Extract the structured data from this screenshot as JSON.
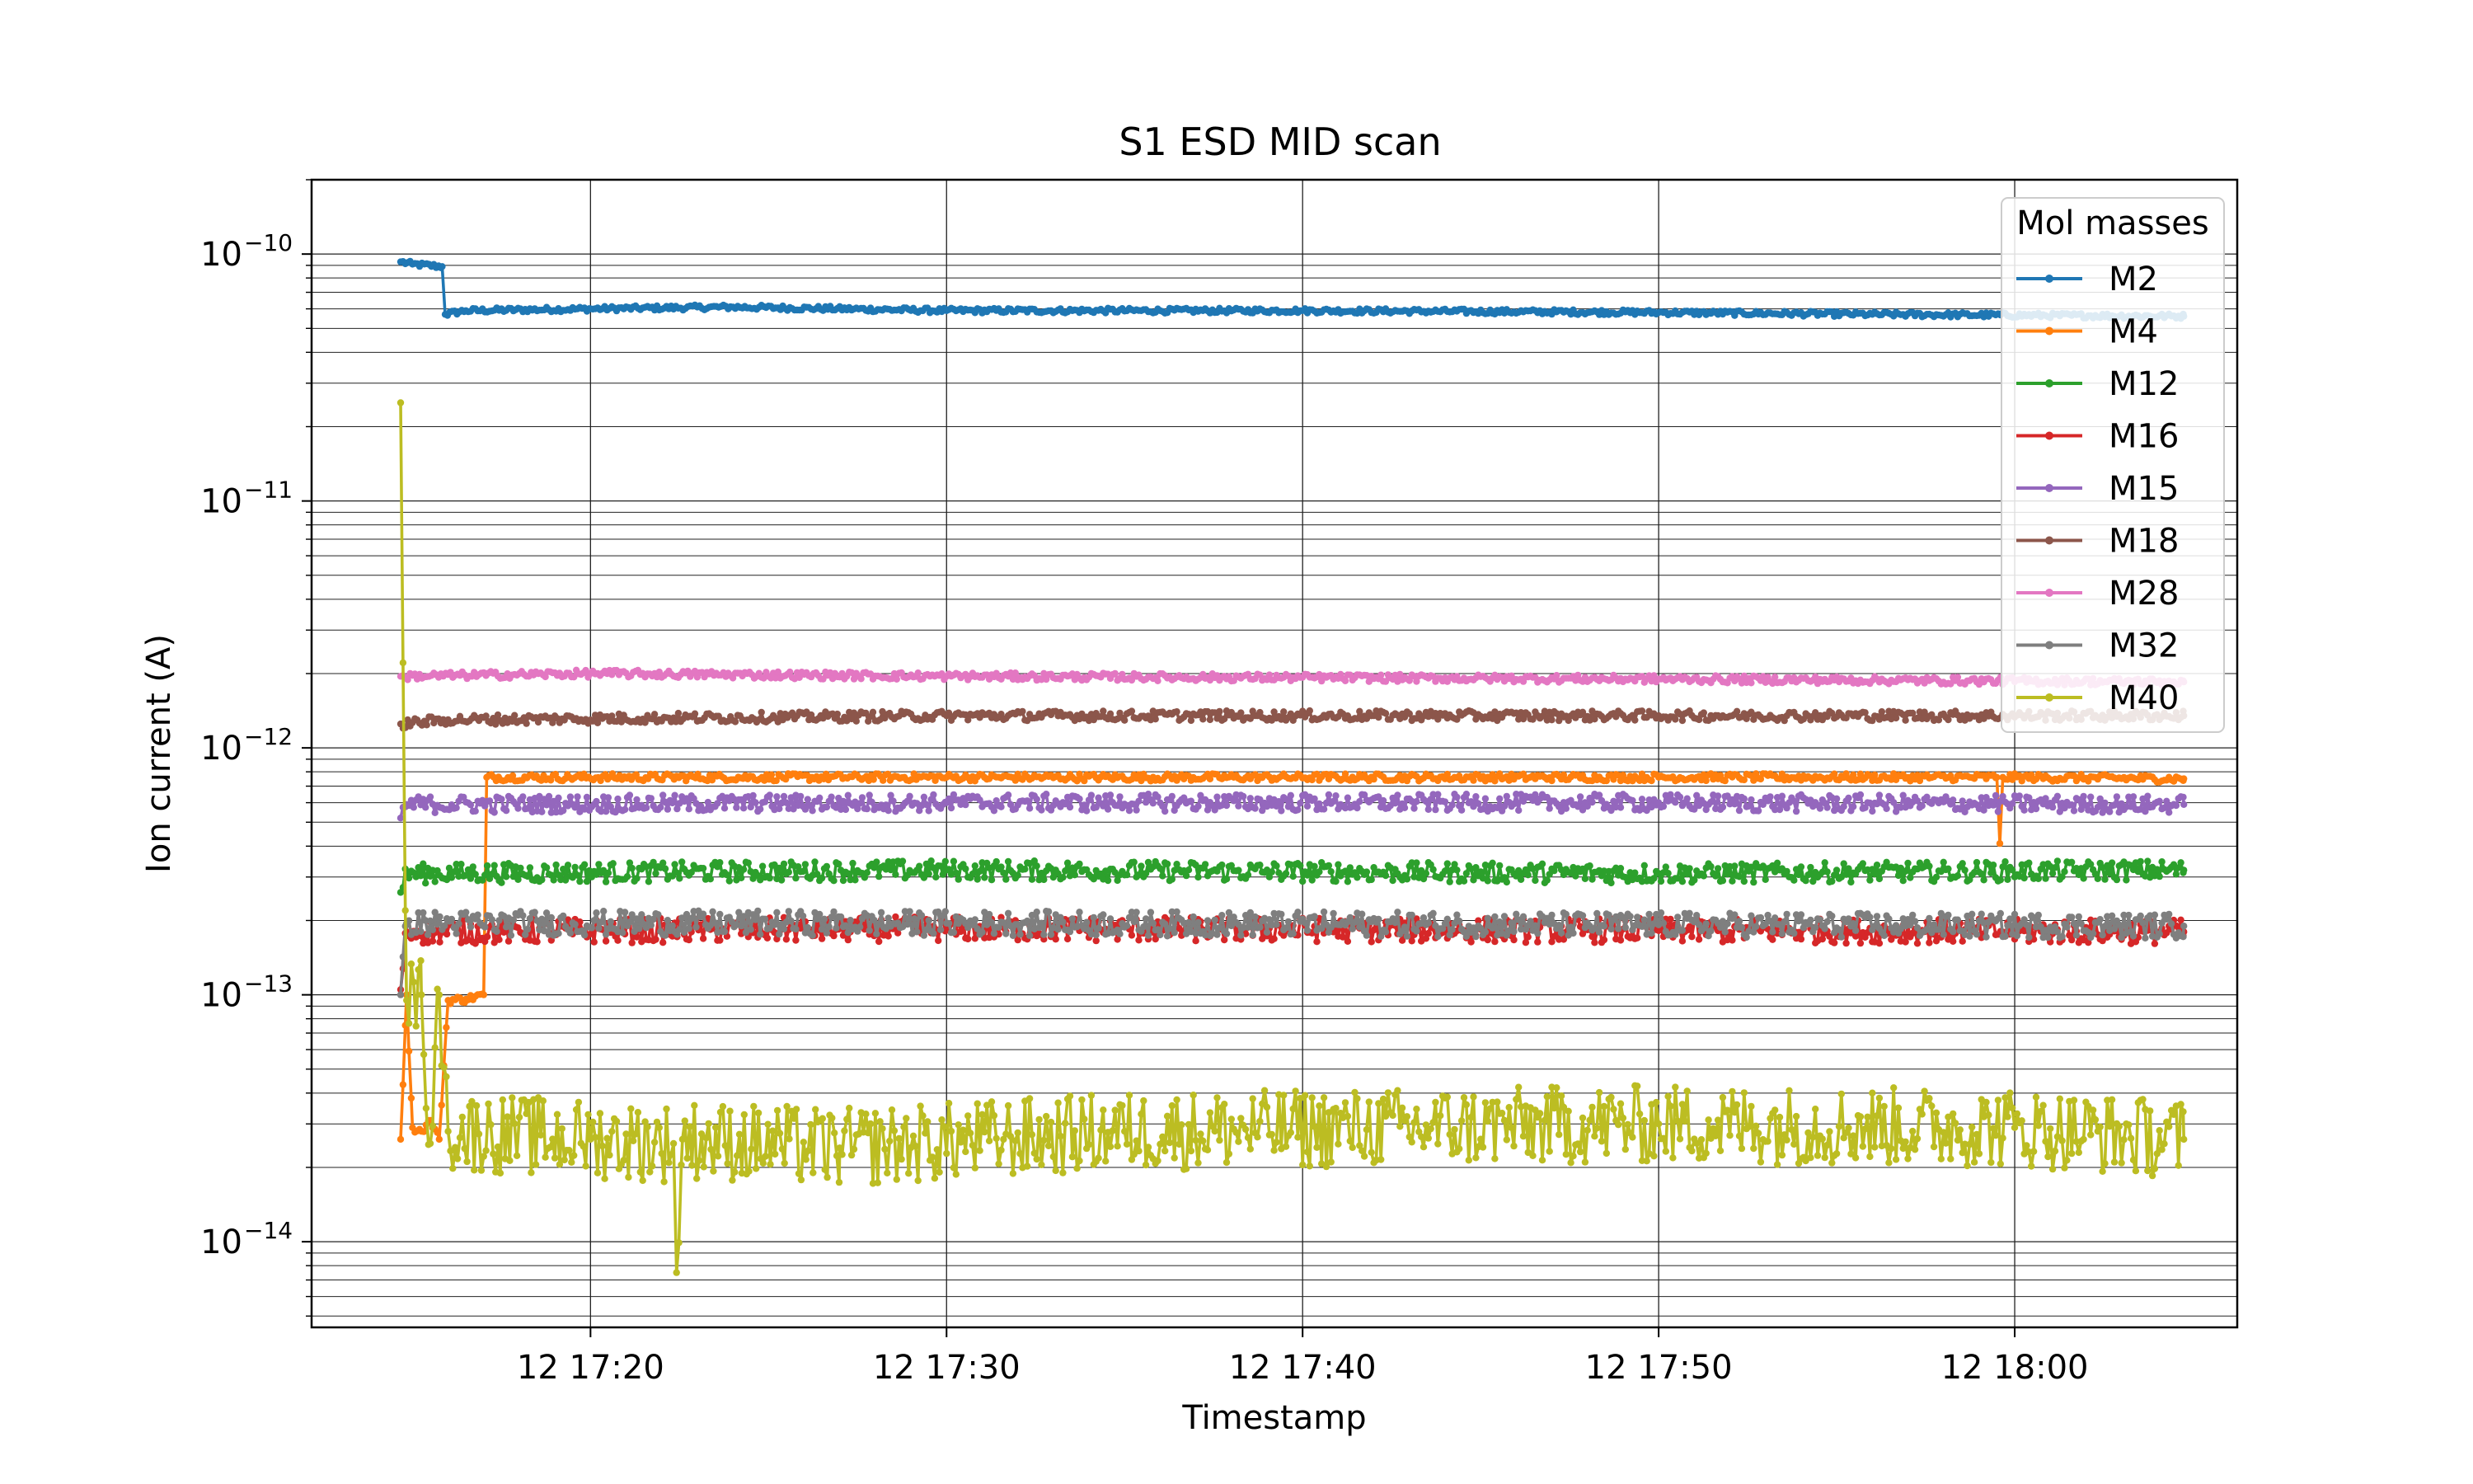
{
  "chart_data": {
    "type": "line",
    "title": "S1 ESD MID scan",
    "xlabel": "Timestamp",
    "ylabel": "Ion current (A)",
    "yscale": "log",
    "ylim": [
      4.5e-15,
      2e-10
    ],
    "xlim": [
      "17:12:10",
      "18:06:15"
    ],
    "x_ticks": [
      {
        "t": "17:20:00",
        "label": "12 17:20"
      },
      {
        "t": "17:30:00",
        "label": "12 17:30"
      },
      {
        "t": "17:40:00",
        "label": "12 17:40"
      },
      {
        "t": "17:50:00",
        "label": "12 17:50"
      },
      {
        "t": "18:00:00",
        "label": "12 18:00"
      }
    ],
    "y_ticks": [
      {
        "exp": -10
      },
      {
        "exp": -11
      },
      {
        "exp": -12
      },
      {
        "exp": -13
      },
      {
        "exp": -14
      }
    ],
    "grid": true,
    "legend": {
      "title": "Mol masses",
      "position": "top-right"
    },
    "series": [
      {
        "name": "M2",
        "color": "#1f77b4",
        "noise": 0.01,
        "points": [
          [
            "17:14:40",
            9.3e-11
          ],
          [
            "17:15:00",
            9.1e-11
          ],
          [
            "17:15:50",
            8.9e-11
          ],
          [
            "17:15:55",
            5.7e-11
          ],
          [
            "17:16:30",
            5.9e-11
          ],
          [
            "17:20:00",
            6e-11
          ],
          [
            "17:24:00",
            6.1e-11
          ],
          [
            "17:30:00",
            5.9e-11
          ],
          [
            "17:40:00",
            5.9e-11
          ],
          [
            "17:50:00",
            5.8e-11
          ],
          [
            "17:56:00",
            5.7e-11
          ],
          [
            "18:04:45",
            5.6e-11
          ]
        ]
      },
      {
        "name": "M4",
        "color": "#ff7f0e",
        "noise": 0.015,
        "points": [
          [
            "17:14:40",
            2.6e-14
          ],
          [
            "17:14:50",
            1e-13
          ],
          [
            "17:15:00",
            2.9e-14
          ],
          [
            "17:15:15",
            2.8e-14
          ],
          [
            "17:15:30",
            3.1e-14
          ],
          [
            "17:15:45",
            2.6e-14
          ],
          [
            "17:16:00",
            9.5e-14
          ],
          [
            "17:16:30",
            9.6e-14
          ],
          [
            "17:17:00",
            1e-13
          ],
          [
            "17:17:05",
            7.6e-13
          ],
          [
            "17:30:00",
            7.6e-13
          ],
          [
            "17:50:00",
            7.6e-13
          ],
          [
            "17:59:30",
            7.6e-13
          ],
          [
            "17:59:35",
            4.1e-13
          ],
          [
            "17:59:40",
            7.6e-13
          ],
          [
            "18:04:45",
            7.5e-13
          ]
        ]
      },
      {
        "name": "M12",
        "color": "#2ca02c",
        "noise": 0.04,
        "points": [
          [
            "17:14:40",
            2.6e-13
          ],
          [
            "17:14:50",
            3.1e-13
          ],
          [
            "17:30:00",
            3.2e-13
          ],
          [
            "17:50:00",
            3.1e-13
          ],
          [
            "18:04:45",
            3.2e-13
          ]
        ]
      },
      {
        "name": "M16",
        "color": "#d62728",
        "noise": 0.05,
        "points": [
          [
            "17:14:40",
            1.05e-13
          ],
          [
            "17:14:50",
            1.8e-13
          ],
          [
            "17:30:00",
            1.85e-13
          ],
          [
            "17:50:00",
            1.82e-13
          ],
          [
            "18:04:45",
            1.8e-13
          ]
        ]
      },
      {
        "name": "M15",
        "color": "#9467bd",
        "noise": 0.035,
        "points": [
          [
            "17:14:40",
            5.2e-13
          ],
          [
            "17:14:50",
            5.9e-13
          ],
          [
            "17:30:00",
            6e-13
          ],
          [
            "17:50:00",
            6e-13
          ],
          [
            "18:04:45",
            5.9e-13
          ]
        ]
      },
      {
        "name": "M18",
        "color": "#8c564b",
        "noise": 0.02,
        "points": [
          [
            "17:14:40",
            1.25e-12
          ],
          [
            "17:16:00",
            1.3e-12
          ],
          [
            "17:30:00",
            1.35e-12
          ],
          [
            "17:50:00",
            1.35e-12
          ],
          [
            "18:04:45",
            1.35e-12
          ]
        ]
      },
      {
        "name": "M28",
        "color": "#e377c2",
        "noise": 0.015,
        "points": [
          [
            "17:14:40",
            1.95e-12
          ],
          [
            "17:20:00",
            2e-12
          ],
          [
            "17:30:00",
            1.95e-12
          ],
          [
            "17:50:00",
            1.9e-12
          ],
          [
            "18:04:45",
            1.85e-12
          ]
        ]
      },
      {
        "name": "M32",
        "color": "#7f7f7f",
        "noise": 0.05,
        "points": [
          [
            "17:14:40",
            1e-13
          ],
          [
            "17:14:50",
            1.95e-13
          ],
          [
            "17:30:00",
            1.95e-13
          ],
          [
            "17:50:00",
            1.92e-13
          ],
          [
            "18:04:45",
            1.9e-13
          ]
        ]
      },
      {
        "name": "M40",
        "color": "#bcbd22",
        "noise": 0.16,
        "points": [
          [
            "17:14:40",
            2.5e-11
          ],
          [
            "17:14:50",
            9.5e-14
          ],
          [
            "17:15:15",
            1e-13
          ],
          [
            "17:15:30",
            2.5e-14
          ],
          [
            "17:15:45",
            1e-13
          ],
          [
            "17:16:00",
            2.8e-14
          ],
          [
            "17:20:00",
            2.6e-14
          ],
          [
            "17:22:20",
            2.5e-14
          ],
          [
            "17:22:25",
            7.5e-15
          ],
          [
            "17:22:35",
            2.6e-14
          ],
          [
            "17:27:00",
            2.4e-14
          ],
          [
            "17:35:00",
            2.8e-14
          ],
          [
            "17:50:00",
            3e-14
          ],
          [
            "18:00:00",
            2.9e-14
          ],
          [
            "18:04:45",
            2.6e-14
          ]
        ]
      }
    ]
  }
}
